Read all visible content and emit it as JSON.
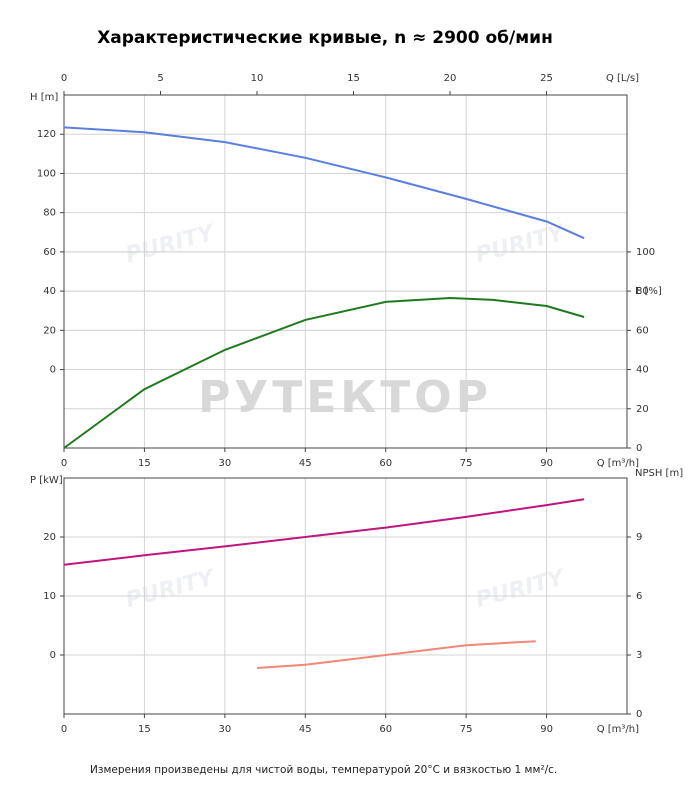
{
  "title": "Характеристические кривые, n ≈ 2900 об/мин",
  "note": "Измерения произведены для чистой воды, температурой 20°C и вязкостью 1 мм²/с.",
  "watermarks": [
    "РУТЕКТОР",
    "PURITY"
  ],
  "chart_data": [
    {
      "type": "line",
      "xlabel": "Q [m³/h]",
      "xlim": [
        0,
        105
      ],
      "xticks": [
        0,
        15,
        30,
        45,
        60,
        75,
        90
      ],
      "x2label": "Q [L/s]",
      "x2lim": [
        0,
        29.17
      ],
      "x2ticks": [
        0,
        5,
        10,
        15,
        20,
        25
      ],
      "ylabel": "H [m]",
      "ylim": [
        -40,
        140
      ],
      "yticks": [
        0,
        20,
        40,
        60,
        80,
        100,
        120
      ],
      "y2label": "E [%]",
      "y2lim": [
        0,
        180
      ],
      "y2ticks": [
        0,
        20,
        40,
        60,
        80,
        100
      ],
      "grid": true,
      "series": [
        {
          "name": "H",
          "color": "#5a7fe0",
          "x": [
            0,
            15,
            30,
            45,
            60,
            75,
            90,
            97
          ],
          "values": [
            123.5,
            121,
            116,
            108,
            98,
            87,
            75.5,
            67
          ]
        },
        {
          "name": "E",
          "color": "#1f7a1f",
          "axis": "y2",
          "x": [
            0,
            15,
            30,
            45,
            60,
            72,
            80,
            90,
            97
          ],
          "values": [
            0,
            30,
            50,
            65.3,
            74.5,
            76.5,
            75.5,
            72.4,
            66.8
          ]
        }
      ]
    },
    {
      "type": "line",
      "xlabel": "Q [m³/h]",
      "xlim": [
        0,
        105
      ],
      "xticks": [
        0,
        15,
        30,
        45,
        60,
        75,
        90
      ],
      "ylabel": "P [kW]",
      "ylim": [
        -10,
        30
      ],
      "yticks": [
        0,
        10,
        20
      ],
      "y2label": "NPSH [m]",
      "y2lim": [
        0,
        12
      ],
      "y2ticks": [
        0,
        3,
        6,
        9
      ],
      "grid": true,
      "series": [
        {
          "name": "P",
          "color": "#c0157f",
          "x": [
            0,
            15,
            30,
            45,
            60,
            75,
            90,
            97
          ],
          "values": [
            15.3,
            16.9,
            18.4,
            20,
            21.6,
            23.4,
            25.4,
            26.4
          ]
        },
        {
          "name": "NPSH",
          "color": "#f08878",
          "axis": "y2",
          "x": [
            36,
            45,
            60,
            75,
            88
          ],
          "values": [
            2.34,
            2.5,
            3.0,
            3.5,
            3.7
          ]
        }
      ]
    }
  ]
}
